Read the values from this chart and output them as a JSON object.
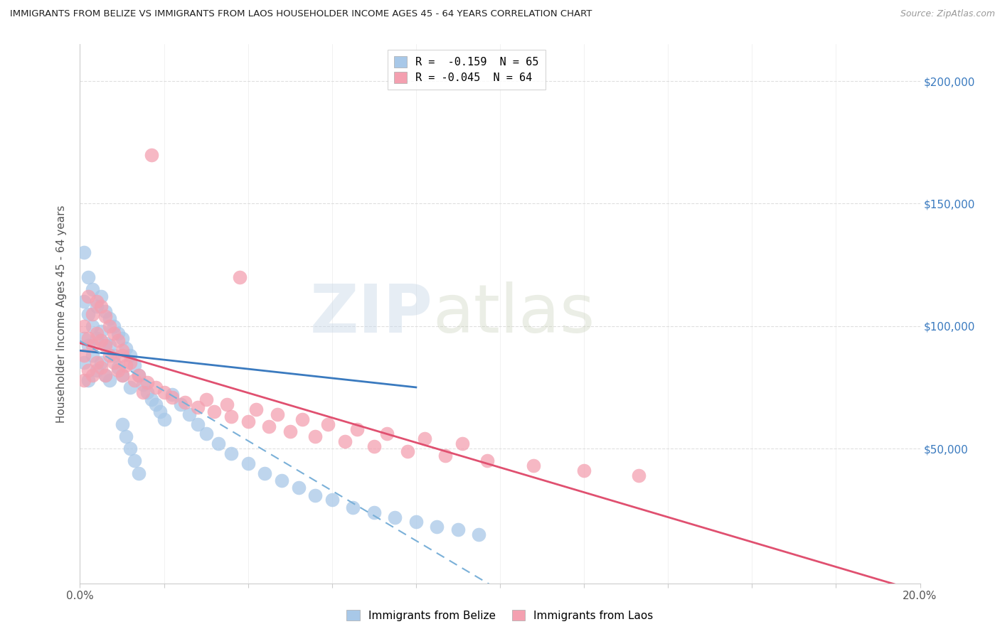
{
  "title": "IMMIGRANTS FROM BELIZE VS IMMIGRANTS FROM LAOS HOUSEHOLDER INCOME AGES 45 - 64 YEARS CORRELATION CHART",
  "source": "Source: ZipAtlas.com",
  "ylabel": "Householder Income Ages 45 - 64 years",
  "xlim": [
    0.0,
    0.2
  ],
  "ylim": [
    -5000,
    215000
  ],
  "belize_color": "#a8c8e8",
  "laos_color": "#f4a0b0",
  "belize_line_color": "#3a7abf",
  "laos_line_color": "#e05070",
  "belize_dashed_color": "#7ab0d8",
  "belize_R": -0.159,
  "belize_N": 65,
  "laos_R": -0.045,
  "laos_N": 64,
  "legend_belize_label": "Immigrants from Belize",
  "legend_laos_label": "Immigrants from Laos",
  "grid_color": "#d8d8d8",
  "belize_x": [
    0.001,
    0.001,
    0.001,
    0.001,
    0.002,
    0.002,
    0.002,
    0.002,
    0.003,
    0.003,
    0.003,
    0.004,
    0.004,
    0.004,
    0.005,
    0.005,
    0.005,
    0.006,
    0.006,
    0.006,
    0.007,
    0.007,
    0.007,
    0.008,
    0.008,
    0.009,
    0.009,
    0.01,
    0.01,
    0.011,
    0.012,
    0.012,
    0.013,
    0.014,
    0.015,
    0.016,
    0.017,
    0.018,
    0.019,
    0.02,
    0.022,
    0.024,
    0.026,
    0.028,
    0.03,
    0.033,
    0.036,
    0.04,
    0.044,
    0.048,
    0.052,
    0.056,
    0.06,
    0.065,
    0.07,
    0.075,
    0.08,
    0.085,
    0.09,
    0.095,
    0.01,
    0.011,
    0.012,
    0.013,
    0.014
  ],
  "belize_y": [
    95000,
    130000,
    110000,
    85000,
    120000,
    105000,
    92000,
    78000,
    115000,
    100000,
    88000,
    108000,
    95000,
    82000,
    112000,
    98000,
    85000,
    106000,
    93000,
    80000,
    103000,
    92000,
    78000,
    100000,
    88000,
    97000,
    83000,
    95000,
    80000,
    91000,
    88000,
    75000,
    84000,
    80000,
    76000,
    73000,
    70000,
    68000,
    65000,
    62000,
    72000,
    68000,
    64000,
    60000,
    56000,
    52000,
    48000,
    44000,
    40000,
    37000,
    34000,
    31000,
    29000,
    26000,
    24000,
    22000,
    20000,
    18000,
    17000,
    15000,
    60000,
    55000,
    50000,
    45000,
    40000
  ],
  "laos_x": [
    0.001,
    0.001,
    0.001,
    0.002,
    0.002,
    0.002,
    0.003,
    0.003,
    0.003,
    0.004,
    0.004,
    0.004,
    0.005,
    0.005,
    0.005,
    0.006,
    0.006,
    0.006,
    0.007,
    0.007,
    0.008,
    0.008,
    0.009,
    0.009,
    0.01,
    0.01,
    0.012,
    0.014,
    0.016,
    0.018,
    0.02,
    0.022,
    0.025,
    0.028,
    0.032,
    0.036,
    0.04,
    0.045,
    0.05,
    0.056,
    0.063,
    0.07,
    0.078,
    0.087,
    0.097,
    0.108,
    0.12,
    0.133,
    0.03,
    0.035,
    0.038,
    0.042,
    0.047,
    0.053,
    0.059,
    0.066,
    0.073,
    0.082,
    0.091,
    0.01,
    0.011,
    0.013,
    0.015,
    0.017
  ],
  "laos_y": [
    100000,
    88000,
    78000,
    112000,
    95000,
    82000,
    105000,
    92000,
    80000,
    110000,
    97000,
    85000,
    108000,
    94000,
    83000,
    104000,
    92000,
    80000,
    100000,
    88000,
    97000,
    85000,
    94000,
    82000,
    90000,
    80000,
    85000,
    80000,
    77000,
    75000,
    73000,
    71000,
    69000,
    67000,
    65000,
    63000,
    61000,
    59000,
    57000,
    55000,
    53000,
    51000,
    49000,
    47000,
    45000,
    43000,
    41000,
    39000,
    70000,
    68000,
    120000,
    66000,
    64000,
    62000,
    60000,
    58000,
    56000,
    54000,
    52000,
    88000,
    84000,
    78000,
    73000,
    170000
  ]
}
